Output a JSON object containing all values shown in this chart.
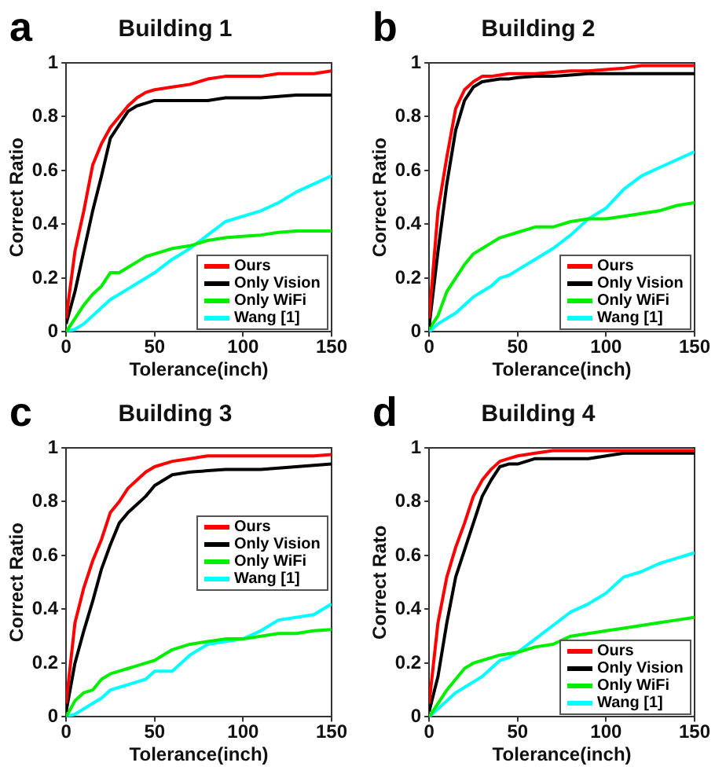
{
  "chart_data": [
    {
      "type": "line",
      "title": "Building 1",
      "xlabel": "Tolerance(inch)",
      "ylabel": "Correct Ratio",
      "annotations": [
        "a"
      ],
      "x": [
        0,
        5,
        10,
        15,
        20,
        25,
        30,
        35,
        40,
        45,
        50,
        60,
        70,
        80,
        90,
        100,
        110,
        120,
        130,
        140,
        150
      ],
      "xlim": [
        0,
        150
      ],
      "xticks": [
        0,
        50,
        100,
        150
      ],
      "ylim": [
        0,
        1
      ],
      "yticks": [
        0,
        0.2,
        0.4,
        0.6,
        0.8,
        1
      ],
      "grid": false,
      "legend": "bottom right",
      "marker": "none",
      "line_style": "solid",
      "series": [
        {
          "name": "Ours",
          "color": "#ff0000",
          "values": [
            0.05,
            0.3,
            0.45,
            0.62,
            0.7,
            0.76,
            0.8,
            0.84,
            0.87,
            0.89,
            0.9,
            0.91,
            0.92,
            0.94,
            0.95,
            0.95,
            0.95,
            0.96,
            0.96,
            0.96,
            0.97
          ]
        },
        {
          "name": "Only Vision",
          "color": "#000000",
          "values": [
            0.03,
            0.15,
            0.3,
            0.45,
            0.58,
            0.72,
            0.77,
            0.82,
            0.84,
            0.85,
            0.86,
            0.86,
            0.86,
            0.86,
            0.87,
            0.87,
            0.87,
            0.875,
            0.88,
            0.88,
            0.88
          ]
        },
        {
          "name": "Only WiFi",
          "color": "#00ee00",
          "values": [
            0,
            0.05,
            0.1,
            0.14,
            0.17,
            0.22,
            0.22,
            0.24,
            0.26,
            0.28,
            0.29,
            0.31,
            0.32,
            0.34,
            0.35,
            0.355,
            0.36,
            0.37,
            0.375,
            0.375,
            0.375
          ]
        },
        {
          "name": "Wang [1]",
          "color": "#00ffff",
          "values": [
            0,
            0.01,
            0.03,
            0.06,
            0.09,
            0.12,
            0.14,
            0.16,
            0.18,
            0.2,
            0.22,
            0.27,
            0.31,
            0.36,
            0.41,
            0.43,
            0.45,
            0.48,
            0.52,
            0.55,
            0.58
          ]
        }
      ]
    },
    {
      "type": "line",
      "title": "Building 2",
      "xlabel": "Tolerance(inch)",
      "ylabel": "Correct Ratio",
      "annotations": [
        "b"
      ],
      "x": [
        0,
        5,
        10,
        15,
        20,
        25,
        30,
        35,
        40,
        45,
        50,
        60,
        70,
        80,
        90,
        100,
        110,
        120,
        130,
        140,
        150
      ],
      "xlim": [
        0,
        150
      ],
      "xticks": [
        0,
        50,
        100,
        150
      ],
      "ylim": [
        0,
        1
      ],
      "yticks": [
        0,
        0.2,
        0.4,
        0.6,
        0.8,
        1
      ],
      "grid": false,
      "legend": "bottom right",
      "marker": "none",
      "line_style": "solid",
      "series": [
        {
          "name": "Ours",
          "color": "#ff0000",
          "values": [
            0.05,
            0.45,
            0.65,
            0.83,
            0.9,
            0.93,
            0.95,
            0.95,
            0.955,
            0.96,
            0.96,
            0.96,
            0.965,
            0.97,
            0.97,
            0.975,
            0.98,
            0.99,
            0.99,
            0.99,
            0.99
          ]
        },
        {
          "name": "Only Vision",
          "color": "#000000",
          "values": [
            0.02,
            0.3,
            0.55,
            0.75,
            0.86,
            0.91,
            0.93,
            0.935,
            0.94,
            0.94,
            0.945,
            0.95,
            0.95,
            0.955,
            0.96,
            0.96,
            0.96,
            0.96,
            0.96,
            0.96,
            0.96
          ]
        },
        {
          "name": "Only WiFi",
          "color": "#00ee00",
          "values": [
            0.01,
            0.06,
            0.15,
            0.2,
            0.25,
            0.29,
            0.31,
            0.33,
            0.35,
            0.36,
            0.37,
            0.39,
            0.39,
            0.41,
            0.42,
            0.42,
            0.43,
            0.44,
            0.45,
            0.47,
            0.48
          ]
        },
        {
          "name": "Wang [1]",
          "color": "#00ffff",
          "values": [
            0,
            0.03,
            0.05,
            0.07,
            0.1,
            0.13,
            0.15,
            0.17,
            0.2,
            0.21,
            0.23,
            0.27,
            0.31,
            0.36,
            0.42,
            0.46,
            0.53,
            0.58,
            0.61,
            0.64,
            0.67
          ]
        }
      ]
    },
    {
      "type": "line",
      "title": "Building 3",
      "xlabel": "Tolerance(inch)",
      "ylabel": "Correct Ratio",
      "annotations": [
        "c"
      ],
      "x": [
        0,
        5,
        10,
        15,
        20,
        25,
        30,
        35,
        40,
        45,
        50,
        60,
        70,
        80,
        90,
        100,
        110,
        120,
        130,
        140,
        150
      ],
      "xlim": [
        0,
        150
      ],
      "xticks": [
        0,
        50,
        100,
        150
      ],
      "ylim": [
        0,
        1
      ],
      "yticks": [
        0,
        0.2,
        0.4,
        0.6,
        0.8,
        1
      ],
      "grid": false,
      "legend": "right",
      "marker": "none",
      "line_style": "solid",
      "series": [
        {
          "name": "Ours",
          "color": "#ff0000",
          "values": [
            0.05,
            0.35,
            0.48,
            0.58,
            0.66,
            0.76,
            0.8,
            0.85,
            0.88,
            0.91,
            0.93,
            0.95,
            0.96,
            0.97,
            0.97,
            0.97,
            0.97,
            0.97,
            0.97,
            0.97,
            0.975
          ]
        },
        {
          "name": "Only Vision",
          "color": "#000000",
          "values": [
            0.02,
            0.2,
            0.32,
            0.43,
            0.55,
            0.64,
            0.72,
            0.76,
            0.79,
            0.82,
            0.86,
            0.9,
            0.91,
            0.915,
            0.92,
            0.92,
            0.92,
            0.925,
            0.93,
            0.935,
            0.94
          ]
        },
        {
          "name": "Only WiFi",
          "color": "#00ee00",
          "values": [
            0,
            0.06,
            0.09,
            0.1,
            0.14,
            0.16,
            0.17,
            0.18,
            0.19,
            0.2,
            0.21,
            0.25,
            0.27,
            0.28,
            0.29,
            0.29,
            0.3,
            0.31,
            0.31,
            0.32,
            0.325
          ]
        },
        {
          "name": "Wang [1]",
          "color": "#00ffff",
          "values": [
            0,
            0.01,
            0.03,
            0.05,
            0.07,
            0.1,
            0.11,
            0.12,
            0.13,
            0.14,
            0.17,
            0.17,
            0.23,
            0.27,
            0.28,
            0.29,
            0.32,
            0.36,
            0.37,
            0.38,
            0.42
          ]
        }
      ]
    },
    {
      "type": "line",
      "title": "Building 4",
      "xlabel": "Tolerance(inch)",
      "ylabel": "Correct Rato",
      "annotations": [
        "d"
      ],
      "x": [
        0,
        5,
        10,
        15,
        20,
        25,
        30,
        35,
        40,
        45,
        50,
        60,
        70,
        80,
        90,
        100,
        110,
        120,
        130,
        140,
        150
      ],
      "xlim": [
        0,
        150
      ],
      "xticks": [
        0,
        50,
        100,
        150
      ],
      "ylim": [
        0,
        1
      ],
      "yticks": [
        0,
        0.2,
        0.4,
        0.6,
        0.8,
        1
      ],
      "grid": false,
      "legend": "bottom right",
      "marker": "none",
      "line_style": "solid",
      "series": [
        {
          "name": "Ours",
          "color": "#ff0000",
          "values": [
            0.05,
            0.35,
            0.52,
            0.63,
            0.72,
            0.82,
            0.88,
            0.92,
            0.95,
            0.96,
            0.97,
            0.98,
            0.99,
            0.99,
            0.99,
            0.99,
            0.99,
            0.99,
            0.99,
            0.99,
            0.99
          ]
        },
        {
          "name": "Only Vision",
          "color": "#000000",
          "values": [
            0.02,
            0.15,
            0.35,
            0.52,
            0.62,
            0.72,
            0.82,
            0.88,
            0.93,
            0.94,
            0.94,
            0.96,
            0.96,
            0.96,
            0.96,
            0.97,
            0.98,
            0.98,
            0.98,
            0.98,
            0.98
          ]
        },
        {
          "name": "Only WiFi",
          "color": "#00ee00",
          "values": [
            0,
            0.05,
            0.1,
            0.14,
            0.18,
            0.2,
            0.21,
            0.22,
            0.23,
            0.235,
            0.24,
            0.26,
            0.27,
            0.3,
            0.31,
            0.32,
            0.33,
            0.34,
            0.35,
            0.36,
            0.37
          ]
        },
        {
          "name": "Wang [1]",
          "color": "#00ffff",
          "values": [
            0,
            0.03,
            0.06,
            0.09,
            0.11,
            0.13,
            0.15,
            0.18,
            0.21,
            0.22,
            0.24,
            0.29,
            0.34,
            0.39,
            0.42,
            0.46,
            0.52,
            0.54,
            0.57,
            0.59,
            0.61
          ]
        }
      ]
    }
  ]
}
